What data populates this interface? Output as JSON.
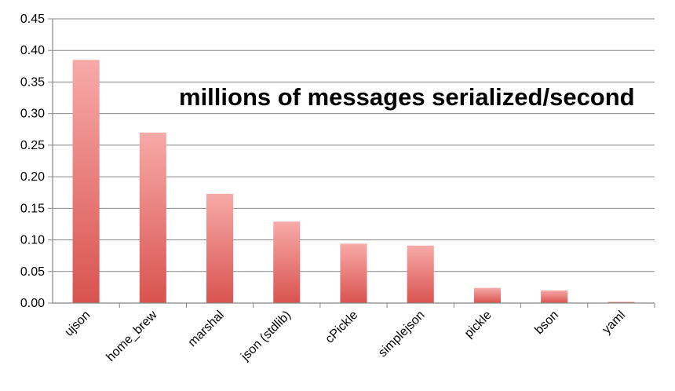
{
  "chart_data": {
    "type": "bar",
    "title": "millions of messages serialized/second",
    "xlabel": "",
    "ylabel": "",
    "categories": [
      "ujson",
      "home_brew",
      "marshal",
      "json (stdlib)",
      "cPickle",
      "simplejson",
      "pickle",
      "bson",
      "yaml"
    ],
    "values": [
      0.385,
      0.27,
      0.173,
      0.129,
      0.094,
      0.091,
      0.024,
      0.02,
      0.002
    ],
    "ylim": [
      0,
      0.45
    ],
    "yticks": [
      "0.00",
      "0.05",
      "0.10",
      "0.15",
      "0.20",
      "0.25",
      "0.30",
      "0.35",
      "0.40",
      "0.45"
    ],
    "grid": true,
    "legend": "none",
    "colors": {
      "bar_top": "#f7aaa8",
      "bar_bottom": "#d9534f",
      "grid": "#878787",
      "axis": "#878787"
    }
  }
}
